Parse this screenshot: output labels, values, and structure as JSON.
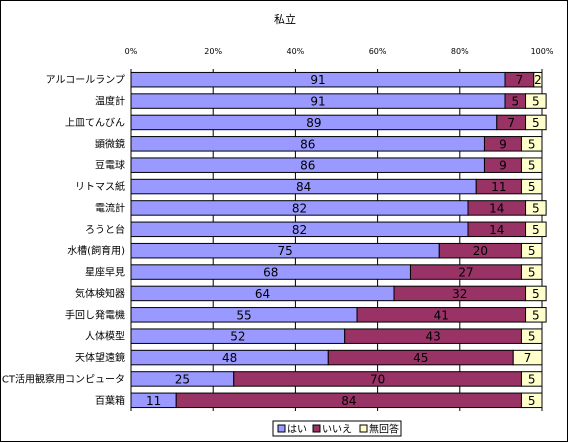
{
  "chart_data": {
    "type": "bar",
    "orientation": "horizontal",
    "stacked": "percent",
    "title": "私立",
    "xlim": [
      0,
      100
    ],
    "x_ticks": [
      "0%",
      "20%",
      "40%",
      "60%",
      "80%",
      "100%"
    ],
    "grid": true,
    "legend_position": "bottom",
    "categories": [
      "アルコールランプ",
      "温度計",
      "上皿てんびん",
      "顕微鏡",
      "豆電球",
      "リトマス紙",
      "電流計",
      "ろうと台",
      "水槽(飼育用)",
      "星座早見",
      "気体検知器",
      "手回し発電機",
      "人体模型",
      "天体望遠鏡",
      "ICT活用観察用コンピュータ",
      "百葉箱"
    ],
    "series": [
      {
        "name": "はい",
        "color": "#9999ff",
        "values": [
          91,
          91,
          89,
          86,
          86,
          84,
          82,
          82,
          75,
          68,
          64,
          55,
          52,
          48,
          25,
          11
        ]
      },
      {
        "name": "いいえ",
        "color": "#993366",
        "values": [
          7,
          5,
          7,
          9,
          9,
          11,
          14,
          14,
          20,
          27,
          32,
          41,
          43,
          45,
          70,
          84
        ]
      },
      {
        "name": "無回答",
        "color": "#ffffcc",
        "values": [
          2,
          5,
          5,
          5,
          5,
          5,
          5,
          5,
          5,
          5,
          5,
          5,
          5,
          7,
          5,
          5
        ]
      }
    ]
  }
}
